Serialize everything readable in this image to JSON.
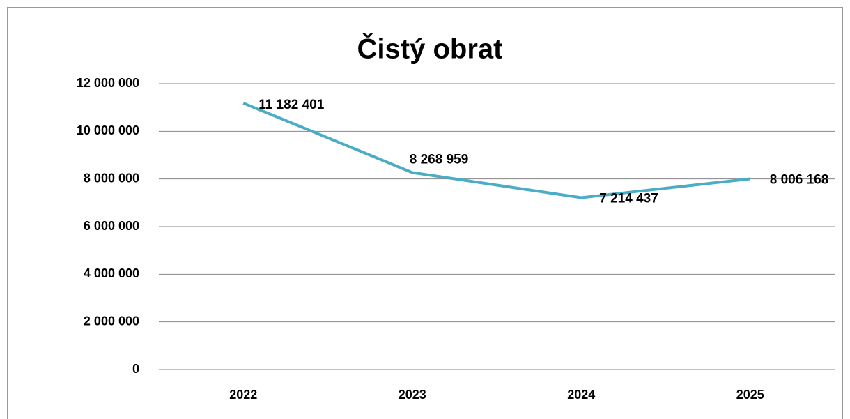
{
  "chart_data": {
    "type": "line",
    "title": "Čistý obrat",
    "categories": [
      "2022",
      "2023",
      "2024",
      "2025"
    ],
    "series": [
      {
        "name": "Čistý obrat",
        "color": "#4bacc6",
        "values": [
          11182401,
          8268959,
          7214437,
          8006168
        ],
        "value_labels": [
          "11 182 401",
          "8 268 959",
          "7 214 437",
          "8 006 168"
        ]
      }
    ],
    "ylim": [
      0,
      12000000
    ],
    "yticks": [
      0,
      {
        "value": 2000000,
        "label": "2 000 000"
      },
      {
        "value": 4000000,
        "label": "4 000 000"
      },
      {
        "value": 6000000,
        "label": "6 000 000"
      },
      {
        "value": 8000000,
        "label": "8 000 000"
      },
      {
        "value": 10000000,
        "label": "10 000 000"
      },
      {
        "value": 12000000,
        "label": "12 000 000"
      }
    ],
    "grid": true
  }
}
